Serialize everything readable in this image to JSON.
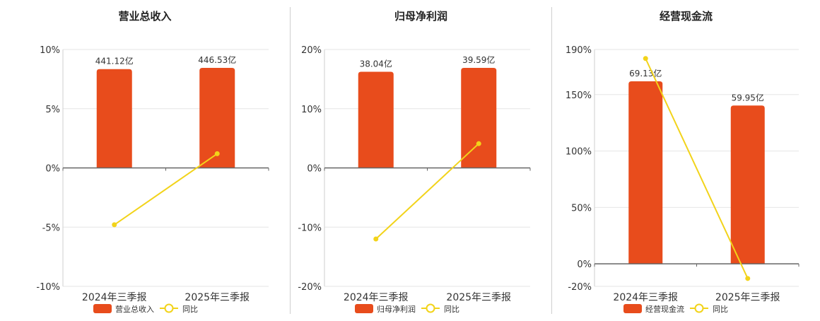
{
  "colors": {
    "bar": "#e84c1c",
    "line": "#f2d31a",
    "axis": "#666666",
    "grid": "#e6e6e6",
    "text": "#333333"
  },
  "chart_data": [
    {
      "type": "bar",
      "title": "营业总收入",
      "categories": [
        "2024年三季报",
        "2025年三季报"
      ],
      "bar_series": {
        "name": "营业总收入",
        "values": [
          441.12,
          446.53
        ],
        "labels": [
          "441.12亿",
          "446.53亿"
        ]
      },
      "line_series": {
        "name": "同比",
        "values": [
          -4.8,
          1.2
        ]
      },
      "ylim": [
        -10,
        10
      ],
      "yticks": [
        10,
        5,
        0,
        -5,
        -10
      ],
      "ytick_labels": [
        "10%",
        "5%",
        "0%",
        "-5%",
        "-10%"
      ],
      "legend": "bottom"
    },
    {
      "type": "bar",
      "title": "归母净利润",
      "categories": [
        "2024年三季报",
        "2025年三季报"
      ],
      "bar_series": {
        "name": "归母净利润",
        "values": [
          38.04,
          39.59
        ],
        "labels": [
          "38.04亿",
          "39.59亿"
        ]
      },
      "line_series": {
        "name": "同比",
        "values": [
          -12.0,
          4.1
        ]
      },
      "ylim": [
        -20,
        20
      ],
      "yticks": [
        20,
        10,
        0,
        -10,
        -20
      ],
      "ytick_labels": [
        "20%",
        "10%",
        "0%",
        "-10%",
        "-20%"
      ],
      "legend": "bottom"
    },
    {
      "type": "bar",
      "title": "经营现金流",
      "categories": [
        "2024年三季报",
        "2025年三季报"
      ],
      "bar_series": {
        "name": "经营现金流",
        "values": [
          69.13,
          59.95
        ],
        "labels": [
          "69.13亿",
          "59.95亿"
        ]
      },
      "line_series": {
        "name": "同比",
        "values": [
          182,
          -13
        ]
      },
      "ylim": [
        -20,
        190
      ],
      "yticks": [
        190,
        150,
        100,
        50,
        0,
        -20
      ],
      "ytick_labels": [
        "190%",
        "150%",
        "100%",
        "50%",
        "0%",
        "-20%"
      ],
      "legend": "bottom"
    }
  ]
}
